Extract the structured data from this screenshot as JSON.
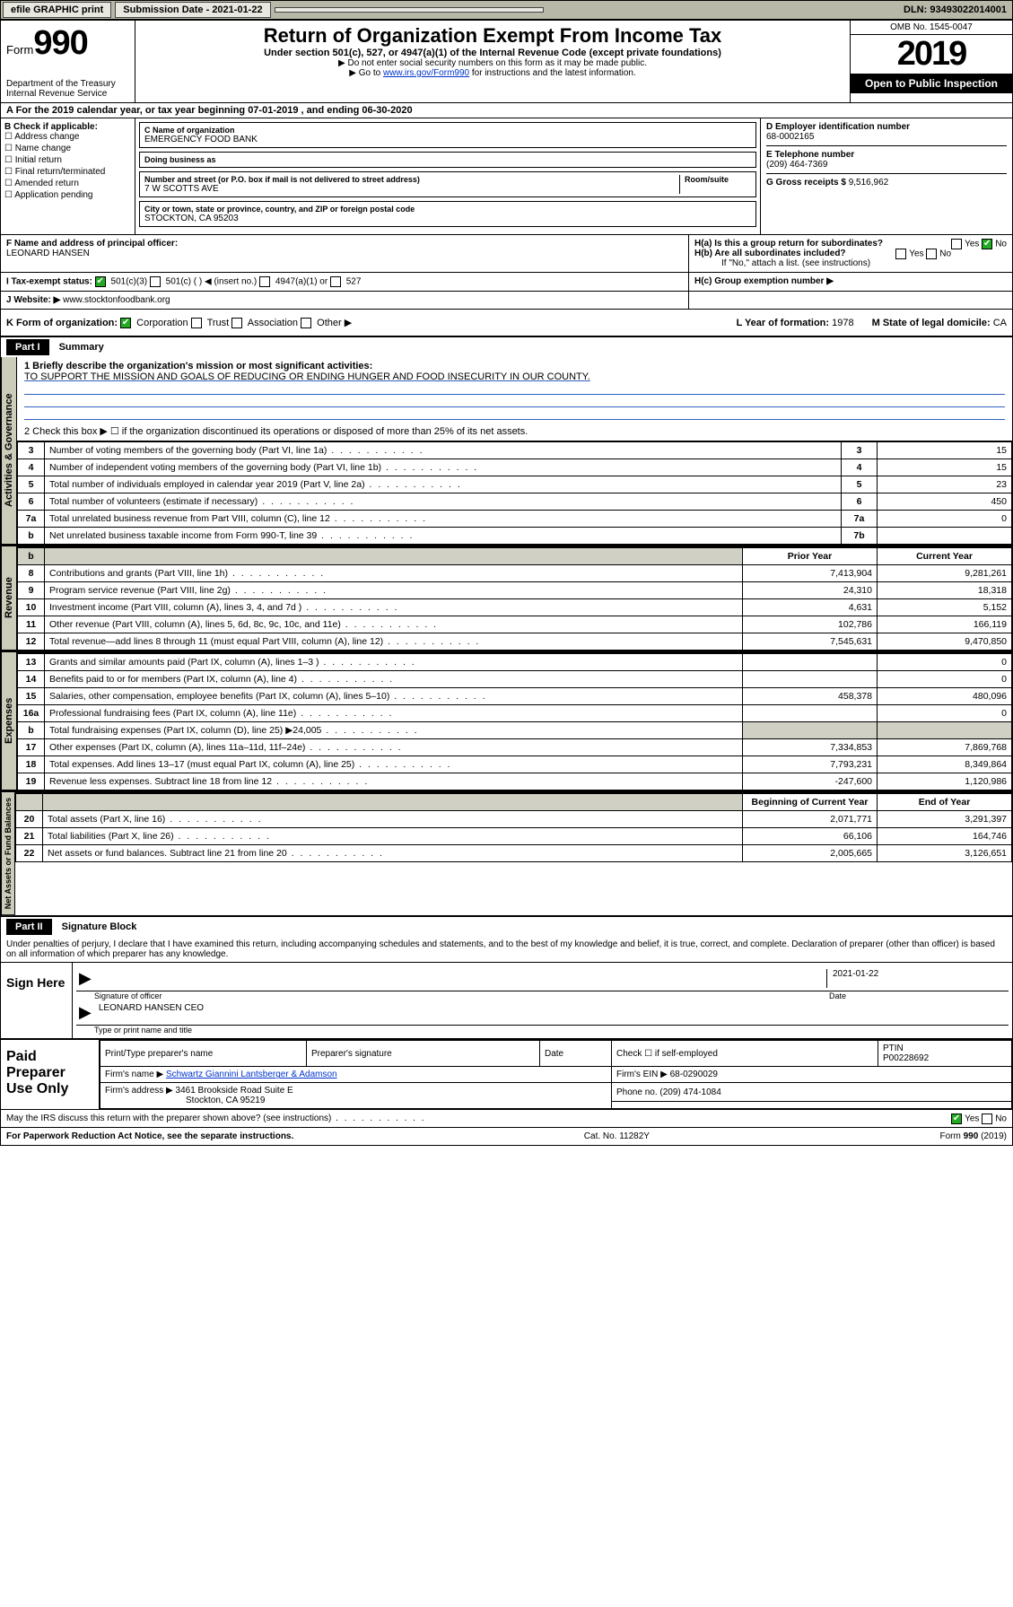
{
  "topbar": {
    "efile": "efile GRAPHIC print",
    "sub_label": "Submission Date - 2021-01-22",
    "dln": "DLN: 93493022014001"
  },
  "header": {
    "form_word": "Form",
    "form_no": "990",
    "dept": "Department of the Treasury\nInternal Revenue Service",
    "title": "Return of Organization Exempt From Income Tax",
    "subtitle": "Under section 501(c), 527, or 4947(a)(1) of the Internal Revenue Code (except private foundations)",
    "note1": "▶ Do not enter social security numbers on this form as it may be made public.",
    "note2_pre": "▶ Go to ",
    "note2_link": "www.irs.gov/Form990",
    "note2_post": " for instructions and the latest information.",
    "omb": "OMB No. 1545-0047",
    "year": "2019",
    "open": "Open to Public Inspection"
  },
  "rowA": "A For the 2019 calendar year, or tax year beginning 07-01-2019    , and ending 06-30-2020",
  "boxB": {
    "title": "B Check if applicable:",
    "items": [
      "Address change",
      "Name change",
      "Initial return",
      "Final return/terminated",
      "Amended return",
      "Application pending"
    ]
  },
  "boxC": {
    "name_lbl": "C Name of organization",
    "name": "EMERGENCY FOOD BANK",
    "dba_lbl": "Doing business as",
    "dba": "",
    "addr_lbl": "Number and street (or P.O. box if mail is not delivered to street address)",
    "room_lbl": "Room/suite",
    "addr": "7 W SCOTTS AVE",
    "city_lbl": "City or town, state or province, country, and ZIP or foreign postal code",
    "city": "STOCKTON, CA  95203"
  },
  "boxD": {
    "lbl": "D Employer identification number",
    "val": "68-0002165"
  },
  "boxE": {
    "lbl": "E Telephone number",
    "val": "(209) 464-7369"
  },
  "boxG": {
    "lbl": "G Gross receipts $",
    "val": "9,516,962"
  },
  "boxF": {
    "lbl": "F  Name and address of principal officer:",
    "val": "LEONARD HANSEN"
  },
  "boxH": {
    "a": "H(a)  Is this a group return for subordinates?",
    "b": "H(b)  Are all subordinates included?",
    "bnote": "If \"No,\" attach a list. (see instructions)",
    "c": "H(c)  Group exemption number ▶",
    "yes": "Yes",
    "no": "No"
  },
  "rowI": {
    "lbl": "I   Tax-exempt status:",
    "opts": [
      "501(c)(3)",
      "501(c) (   ) ◀ (insert no.)",
      "4947(a)(1) or",
      "527"
    ]
  },
  "rowJ": {
    "lbl": "J   Website: ▶",
    "val": "www.stocktonfoodbank.org"
  },
  "rowK": {
    "lbl": "K Form of organization:",
    "opts": [
      "Corporation",
      "Trust",
      "Association",
      "Other ▶"
    ]
  },
  "rowL": {
    "lbl": "L Year of formation:",
    "val": "1978"
  },
  "rowM": {
    "lbl": "M State of legal domicile:",
    "val": "CA"
  },
  "part1": {
    "hdr": "Part I",
    "title": "Summary"
  },
  "summary": {
    "q1": "1   Briefly describe the organization's mission or most significant activities:",
    "mission": "TO SUPPORT THE MISSION AND GOALS OF REDUCING OR ENDING HUNGER AND FOOD INSECURITY IN OUR COUNTY.",
    "q2": "2   Check this box ▶ ☐  if the organization discontinued its operations or disposed of more than 25% of its net assets.",
    "rows": [
      {
        "n": "3",
        "t": "Number of voting members of the governing body (Part VI, line 1a)",
        "c": "3",
        "v": "15"
      },
      {
        "n": "4",
        "t": "Number of independent voting members of the governing body (Part VI, line 1b)",
        "c": "4",
        "v": "15"
      },
      {
        "n": "5",
        "t": "Total number of individuals employed in calendar year 2019 (Part V, line 2a)",
        "c": "5",
        "v": "23"
      },
      {
        "n": "6",
        "t": "Total number of volunteers (estimate if necessary)",
        "c": "6",
        "v": "450"
      },
      {
        "n": "7a",
        "t": "Total unrelated business revenue from Part VIII, column (C), line 12",
        "c": "7a",
        "v": "0"
      },
      {
        "n": "b",
        "t": "Net unrelated business taxable income from Form 990-T, line 39",
        "c": "7b",
        "v": ""
      }
    ],
    "col_prior": "Prior Year",
    "col_curr": "Current Year",
    "rev_rows": [
      {
        "n": "8",
        "t": "Contributions and grants (Part VIII, line 1h)",
        "p": "7,413,904",
        "c": "9,281,261"
      },
      {
        "n": "9",
        "t": "Program service revenue (Part VIII, line 2g)",
        "p": "24,310",
        "c": "18,318"
      },
      {
        "n": "10",
        "t": "Investment income (Part VIII, column (A), lines 3, 4, and 7d )",
        "p": "4,631",
        "c": "5,152"
      },
      {
        "n": "11",
        "t": "Other revenue (Part VIII, column (A), lines 5, 6d, 8c, 9c, 10c, and 11e)",
        "p": "102,786",
        "c": "166,119"
      },
      {
        "n": "12",
        "t": "Total revenue—add lines 8 through 11 (must equal Part VIII, column (A), line 12)",
        "p": "7,545,631",
        "c": "9,470,850"
      }
    ],
    "exp_rows": [
      {
        "n": "13",
        "t": "Grants and similar amounts paid (Part IX, column (A), lines 1–3 )",
        "p": "",
        "c": "0"
      },
      {
        "n": "14",
        "t": "Benefits paid to or for members (Part IX, column (A), line 4)",
        "p": "",
        "c": "0"
      },
      {
        "n": "15",
        "t": "Salaries, other compensation, employee benefits (Part IX, column (A), lines 5–10)",
        "p": "458,378",
        "c": "480,096"
      },
      {
        "n": "16a",
        "t": "Professional fundraising fees (Part IX, column (A), line 11e)",
        "p": "",
        "c": "0"
      },
      {
        "n": "b",
        "t": "Total fundraising expenses (Part IX, column (D), line 25) ▶24,005",
        "p": "SHADE",
        "c": "SHADE"
      },
      {
        "n": "17",
        "t": "Other expenses (Part IX, column (A), lines 11a–11d, 11f–24e)",
        "p": "7,334,853",
        "c": "7,869,768"
      },
      {
        "n": "18",
        "t": "Total expenses. Add lines 13–17 (must equal Part IX, column (A), line 25)",
        "p": "7,793,231",
        "c": "8,349,864"
      },
      {
        "n": "19",
        "t": "Revenue less expenses. Subtract line 18 from line 12",
        "p": "-247,600",
        "c": "1,120,986"
      }
    ],
    "col_beg": "Beginning of Current Year",
    "col_end": "End of Year",
    "na_rows": [
      {
        "n": "20",
        "t": "Total assets (Part X, line 16)",
        "p": "2,071,771",
        "c": "3,291,397"
      },
      {
        "n": "21",
        "t": "Total liabilities (Part X, line 26)",
        "p": "66,106",
        "c": "164,746"
      },
      {
        "n": "22",
        "t": "Net assets or fund balances. Subtract line 21 from line 20",
        "p": "2,005,665",
        "c": "3,126,651"
      }
    ],
    "vtabs": [
      "Activities & Governance",
      "Revenue",
      "Expenses",
      "Net Assets or Fund Balances"
    ]
  },
  "part2": {
    "hdr": "Part II",
    "title": "Signature Block"
  },
  "declare": "Under penalties of perjury, I declare that I have examined this return, including accompanying schedules and statements, and to the best of my knowledge and belief, it is true, correct, and complete. Declaration of preparer (other than officer) is based on all information of which preparer has any knowledge.",
  "sign": {
    "here": "Sign Here",
    "sig_lbl": "Signature of officer",
    "date_lbl": "Date",
    "date": "2021-01-22",
    "name": "LEONARD HANSEN  CEO",
    "name_lbl": "Type or print name and title"
  },
  "prep": {
    "title": "Paid Preparer Use Only",
    "h1": "Print/Type preparer's name",
    "h2": "Preparer's signature",
    "h3": "Date",
    "h4": "Check ☐ if self-employed",
    "h5": "PTIN",
    "ptin": "P00228692",
    "firm_lbl": "Firm's name    ▶",
    "firm": "Schwartz Giannini Lantsberger & Adamson",
    "ein_lbl": "Firm's EIN ▶",
    "ein": "68-0290029",
    "addr_lbl": "Firm's address ▶",
    "addr1": "3461 Brookside Road Suite E",
    "addr2": "Stockton, CA  95219",
    "phone_lbl": "Phone no.",
    "phone": "(209) 474-1084"
  },
  "footer": {
    "discuss": "May the IRS discuss this return with the preparer shown above? (see instructions)",
    "yes": "Yes",
    "no": "No",
    "pra": "For Paperwork Reduction Act Notice, see the separate instructions.",
    "cat": "Cat. No. 11282Y",
    "form": "Form 990 (2019)"
  }
}
